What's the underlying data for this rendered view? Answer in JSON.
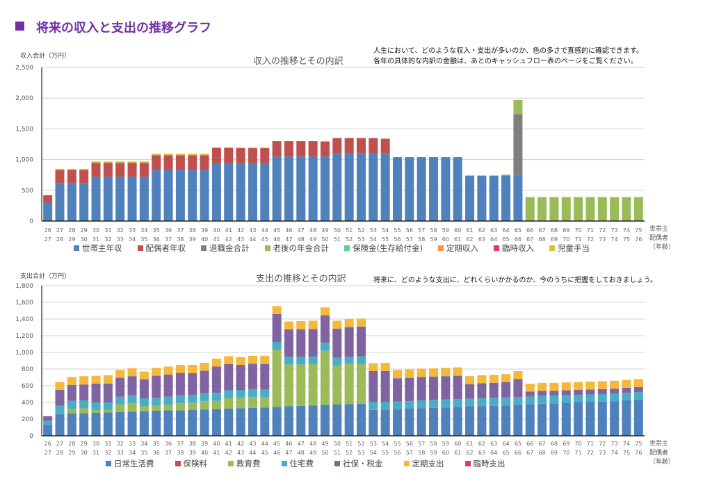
{
  "page": {
    "title": "将来の収入と支出の推移グラフ",
    "age_note": [
      "世帯主",
      "配偶者",
      "（年齢）"
    ]
  },
  "chart_data": [
    {
      "type": "bar",
      "stacked": true,
      "title": "収入の推移とその内訳",
      "ylabel": "収入合計（万円）",
      "note": [
        "人生において、どのような収入・支出が多いのか、色の多さで直感的に確認できます。",
        "各年の具体的な内訳の金額は、あとのキャッシュフロー表のページをご覧ください。"
      ],
      "ylim": [
        0,
        2500
      ],
      "yticks": [
        "0",
        "500",
        "1,000",
        "1,500",
        "2,000",
        "2,500"
      ],
      "grid": true,
      "legend": "bottom",
      "x_head": [
        26,
        27,
        28,
        29,
        30,
        31,
        32,
        33,
        34,
        35,
        36,
        37,
        38,
        39,
        40,
        41,
        42,
        43,
        44,
        45,
        46,
        47,
        48,
        49,
        50,
        51,
        52,
        53,
        54,
        55,
        56,
        57,
        58,
        59,
        60,
        61,
        62,
        63,
        64,
        65,
        66,
        67,
        68,
        69,
        70,
        71,
        72,
        73,
        74,
        75
      ],
      "x_spouse": [
        27,
        28,
        29,
        30,
        31,
        32,
        33,
        34,
        35,
        36,
        37,
        38,
        39,
        40,
        41,
        42,
        43,
        44,
        45,
        46,
        47,
        48,
        49,
        50,
        51,
        52,
        53,
        54,
        55,
        56,
        57,
        58,
        59,
        60,
        61,
        62,
        63,
        64,
        65,
        66,
        67,
        68,
        69,
        70,
        71,
        72,
        73,
        74,
        75,
        76
      ],
      "series": [
        {
          "name": "世帯主年収",
          "color": "#4f81bd",
          "values": [
            300,
            620,
            620,
            620,
            720,
            720,
            720,
            720,
            720,
            830,
            830,
            830,
            830,
            830,
            940,
            940,
            940,
            940,
            940,
            1050,
            1050,
            1050,
            1050,
            1050,
            1100,
            1100,
            1100,
            1100,
            1100,
            1040,
            1040,
            1040,
            1040,
            1040,
            1040,
            740,
            740,
            740,
            740,
            740,
            0,
            0,
            0,
            0,
            0,
            0,
            0,
            0,
            0,
            0
          ]
        },
        {
          "name": "配偶者年収",
          "color": "#c0504d",
          "values": [
            120,
            210,
            210,
            210,
            225,
            225,
            225,
            225,
            225,
            240,
            240,
            240,
            240,
            240,
            250,
            250,
            250,
            250,
            250,
            250,
            250,
            250,
            250,
            245,
            250,
            250,
            250,
            250,
            240,
            0,
            0,
            0,
            0,
            0,
            0,
            0,
            0,
            0,
            0,
            0,
            0,
            0,
            0,
            0,
            0,
            0,
            0,
            0,
            0,
            0
          ]
        },
        {
          "name": "退職金合計",
          "color": "#7f7f7f",
          "values": [
            0,
            0,
            0,
            0,
            0,
            0,
            0,
            0,
            0,
            0,
            0,
            0,
            0,
            0,
            0,
            0,
            0,
            0,
            0,
            0,
            0,
            0,
            0,
            0,
            0,
            0,
            0,
            0,
            0,
            0,
            0,
            0,
            0,
            0,
            0,
            0,
            0,
            0,
            0,
            1000,
            0,
            0,
            0,
            0,
            0,
            0,
            0,
            0,
            0,
            0
          ]
        },
        {
          "name": "老後の年金合計",
          "color": "#9bbb59",
          "values": [
            0,
            0,
            0,
            0,
            0,
            0,
            0,
            0,
            0,
            0,
            0,
            0,
            0,
            0,
            0,
            0,
            0,
            0,
            0,
            0,
            0,
            0,
            0,
            0,
            0,
            0,
            0,
            0,
            0,
            0,
            0,
            0,
            0,
            0,
            0,
            0,
            0,
            0,
            15,
            230,
            390,
            390,
            390,
            390,
            390,
            390,
            390,
            390,
            390,
            390
          ]
        },
        {
          "name": "保険金(生存給付金)",
          "color": "#5fd38d",
          "values": [
            0,
            0,
            0,
            0,
            0,
            0,
            0,
            0,
            0,
            0,
            0,
            0,
            0,
            0,
            0,
            0,
            0,
            0,
            0,
            0,
            0,
            0,
            0,
            0,
            0,
            0,
            0,
            0,
            0,
            0,
            0,
            0,
            0,
            0,
            0,
            0,
            0,
            0,
            0,
            0,
            0,
            0,
            0,
            0,
            0,
            0,
            0,
            0,
            0,
            0
          ]
        },
        {
          "name": "定期収入",
          "color": "#f79646",
          "values": [
            0,
            0,
            0,
            0,
            0,
            0,
            0,
            0,
            0,
            0,
            0,
            0,
            0,
            0,
            0,
            0,
            0,
            0,
            0,
            0,
            0,
            0,
            0,
            0,
            0,
            0,
            0,
            0,
            0,
            0,
            0,
            0,
            0,
            0,
            0,
            0,
            0,
            0,
            0,
            0,
            0,
            0,
            0,
            0,
            0,
            0,
            0,
            0,
            0,
            0
          ]
        },
        {
          "name": "臨時収入",
          "color": "#e6366f",
          "values": [
            0,
            0,
            0,
            0,
            0,
            0,
            0,
            0,
            0,
            0,
            0,
            0,
            0,
            0,
            0,
            0,
            0,
            0,
            0,
            0,
            0,
            0,
            0,
            0,
            0,
            0,
            0,
            0,
            0,
            0,
            0,
            0,
            0,
            0,
            0,
            0,
            0,
            0,
            0,
            0,
            0,
            0,
            0,
            0,
            0,
            0,
            0,
            0,
            0,
            0
          ]
        },
        {
          "name": "児童手当",
          "color": "#d4c43a",
          "values": [
            0,
            20,
            20,
            20,
            25,
            25,
            25,
            25,
            25,
            25,
            25,
            25,
            25,
            25,
            10,
            10,
            5,
            5,
            5,
            0,
            0,
            0,
            0,
            0,
            0,
            0,
            0,
            0,
            0,
            0,
            0,
            0,
            0,
            0,
            0,
            0,
            0,
            0,
            0,
            0,
            0,
            0,
            0,
            0,
            0,
            0,
            0,
            0,
            0,
            0
          ]
        }
      ]
    },
    {
      "type": "bar",
      "stacked": true,
      "title": "支出の推移とその内訳",
      "ylabel": "支出合計（万円）",
      "note": [
        "将来に、どのような支出に、どれくらいかかるのか、今のうちに把握をしておきましょう。"
      ],
      "ylim": [
        0,
        1800
      ],
      "yticks": [
        "0",
        "200",
        "400",
        "600",
        "800",
        "1,000",
        "1,200",
        "1,400",
        "1,600",
        "1,800"
      ],
      "grid": true,
      "legend": "bottom",
      "series": [
        {
          "name": "日常生活費",
          "color": "#4f81bd",
          "values": [
            130,
            260,
            270,
            270,
            275,
            280,
            285,
            290,
            295,
            300,
            305,
            305,
            310,
            315,
            320,
            325,
            330,
            335,
            340,
            345,
            355,
            360,
            365,
            370,
            375,
            380,
            385,
            310,
            315,
            320,
            325,
            330,
            335,
            340,
            345,
            350,
            355,
            360,
            365,
            370,
            375,
            385,
            390,
            395,
            400,
            405,
            410,
            415,
            425,
            435
          ]
        },
        {
          "name": "保険料",
          "color": "#c0504d",
          "values": [
            0,
            0,
            0,
            0,
            0,
            0,
            0,
            0,
            0,
            0,
            0,
            0,
            0,
            0,
            0,
            0,
            0,
            0,
            0,
            0,
            0,
            0,
            0,
            0,
            0,
            0,
            0,
            0,
            0,
            0,
            0,
            0,
            0,
            0,
            0,
            0,
            0,
            0,
            0,
            0,
            0,
            0,
            0,
            0,
            0,
            0,
            0,
            0,
            0,
            0
          ]
        },
        {
          "name": "教育費",
          "color": "#9bbb59",
          "values": [
            0,
            0,
            50,
            60,
            30,
            30,
            90,
            105,
            60,
            60,
            70,
            85,
            85,
            100,
            100,
            125,
            125,
            130,
            120,
            685,
            500,
            495,
            495,
            650,
            465,
            480,
            475,
            0,
            0,
            0,
            0,
            0,
            0,
            0,
            0,
            0,
            0,
            0,
            0,
            0,
            0,
            0,
            0,
            0,
            0,
            0,
            0,
            0,
            0,
            0
          ]
        },
        {
          "name": "住宅費",
          "color": "#4bacc6",
          "values": [
            50,
            100,
            100,
            95,
            95,
            90,
            95,
            90,
            95,
            95,
            95,
            95,
            95,
            95,
            95,
            95,
            95,
            95,
            95,
            95,
            90,
            90,
            90,
            95,
            95,
            85,
            95,
            95,
            90,
            90,
            90,
            95,
            95,
            95,
            95,
            95,
            95,
            95,
            95,
            95,
            95,
            95,
            90,
            90,
            90,
            90,
            90,
            90,
            90,
            90
          ]
        },
        {
          "name": "社保・税金",
          "color": "#8064a2",
          "values": [
            55,
            190,
            190,
            190,
            225,
            225,
            225,
            230,
            225,
            265,
            265,
            270,
            260,
            270,
            315,
            315,
            300,
            305,
            305,
            335,
            330,
            330,
            330,
            330,
            350,
            355,
            355,
            370,
            370,
            280,
            280,
            280,
            280,
            280,
            280,
            175,
            180,
            180,
            185,
            215,
            60,
            60,
            60,
            60,
            60,
            60,
            60,
            60,
            60,
            60
          ]
        },
        {
          "name": "定期支出",
          "color": "#f4b93b",
          "values": [
            0,
            95,
            95,
            100,
            95,
            100,
            95,
            95,
            95,
            95,
            95,
            95,
            100,
            95,
            95,
            95,
            95,
            95,
            100,
            95,
            95,
            100,
            100,
            95,
            95,
            100,
            95,
            95,
            100,
            100,
            100,
            100,
            100,
            100,
            100,
            95,
            95,
            95,
            95,
            95,
            95,
            95,
            95,
            95,
            95,
            95,
            95,
            95,
            95,
            95
          ]
        },
        {
          "name": "臨時支出",
          "color": "#e6366f",
          "values": [
            0,
            0,
            0,
            0,
            0,
            0,
            0,
            0,
            0,
            0,
            0,
            0,
            0,
            0,
            0,
            0,
            0,
            0,
            0,
            0,
            0,
            0,
            0,
            0,
            0,
            0,
            0,
            0,
            0,
            0,
            0,
            0,
            0,
            0,
            0,
            0,
            0,
            0,
            0,
            0,
            0,
            0,
            0,
            0,
            0,
            0,
            0,
            0,
            0,
            0
          ]
        }
      ]
    }
  ]
}
